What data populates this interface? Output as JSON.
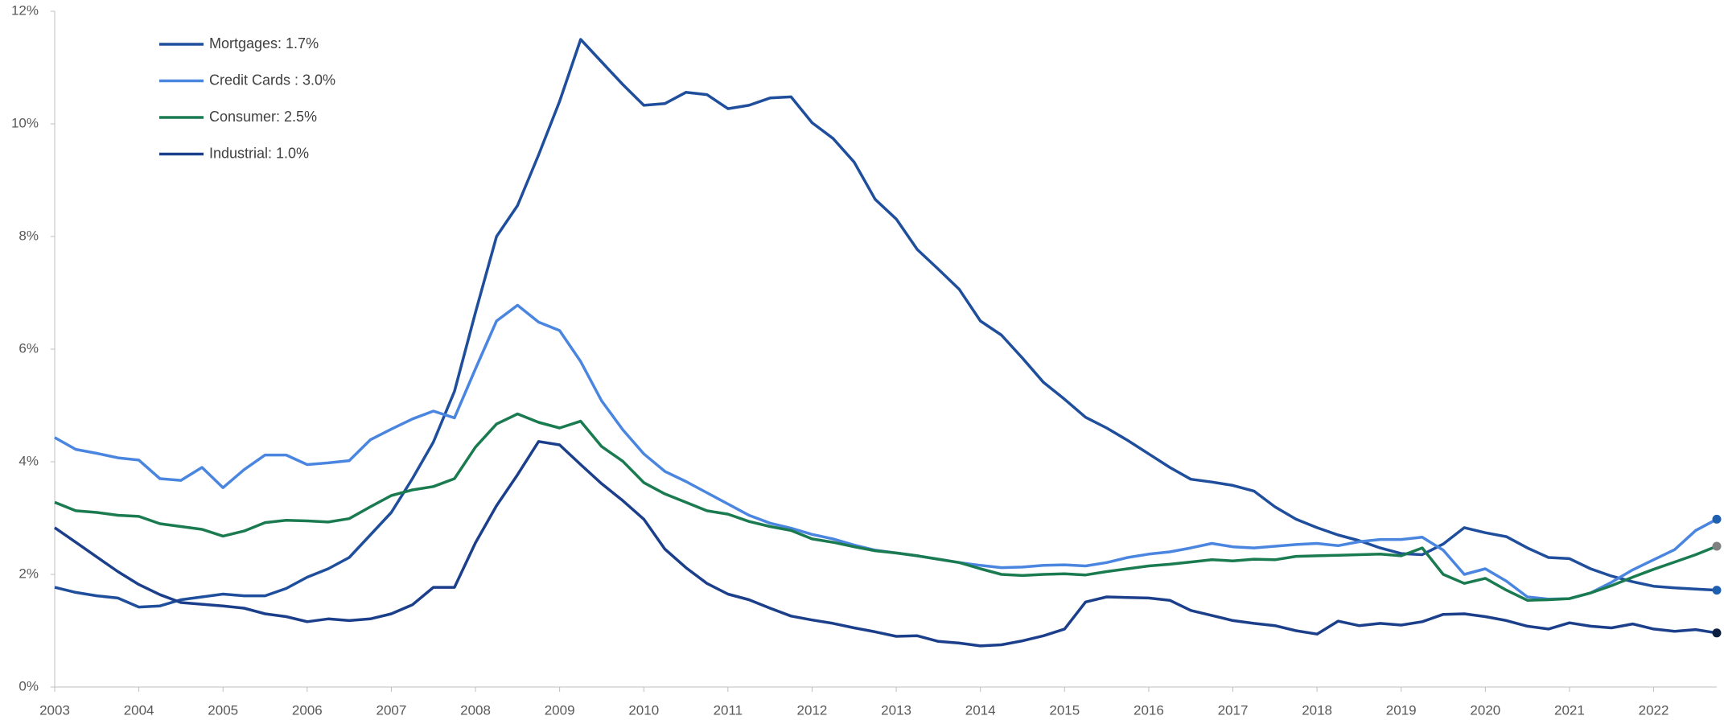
{
  "chart_data": {
    "type": "line",
    "x": [
      2003,
      2003.25,
      2003.5,
      2003.75,
      2004,
      2004.25,
      2004.5,
      2004.75,
      2005,
      2005.25,
      2005.5,
      2005.75,
      2006,
      2006.25,
      2006.5,
      2006.75,
      2007,
      2007.25,
      2007.5,
      2007.75,
      2008,
      2008.25,
      2008.5,
      2008.75,
      2009,
      2009.25,
      2009.5,
      2009.75,
      2010,
      2010.25,
      2010.5,
      2010.75,
      2011,
      2011.25,
      2011.5,
      2011.75,
      2012,
      2012.25,
      2012.5,
      2012.75,
      2013,
      2013.25,
      2013.5,
      2013.75,
      2014,
      2014.25,
      2014.5,
      2014.75,
      2015,
      2015.25,
      2015.5,
      2015.75,
      2016,
      2016.25,
      2016.5,
      2016.75,
      2017,
      2017.25,
      2017.5,
      2017.75,
      2018,
      2018.25,
      2018.5,
      2018.75,
      2019,
      2019.25,
      2019.5,
      2019.75,
      2020,
      2020.25,
      2020.5,
      2020.75,
      2021,
      2021.25,
      2021.5,
      2021.75,
      2022,
      2022.25,
      2022.5,
      2022.75
    ],
    "xlim": [
      2003,
      2022.75
    ],
    "xticks": [
      2003,
      2004,
      2005,
      2006,
      2007,
      2008,
      2009,
      2010,
      2011,
      2012,
      2013,
      2014,
      2015,
      2016,
      2017,
      2018,
      2019,
      2020,
      2021,
      2022
    ],
    "ylim": [
      0,
      12
    ],
    "yticks": [
      {
        "value": 0,
        "label": "0%"
      },
      {
        "value": 2,
        "label": "2%"
      },
      {
        "value": 4,
        "label": "4%"
      },
      {
        "value": 6,
        "label": "6%"
      },
      {
        "value": 8,
        "label": "8%"
      },
      {
        "value": 10,
        "label": "10%"
      },
      {
        "value": 12,
        "label": "12%"
      }
    ],
    "grid": false,
    "legend": "upper left",
    "series": [
      {
        "name": "Mortgages: 1.7%",
        "color": "#1f4e9c",
        "end_marker_color": "#1f5fb0",
        "values": [
          1.77,
          1.68,
          1.62,
          1.58,
          1.42,
          1.44,
          1.55,
          1.6,
          1.65,
          1.62,
          1.62,
          1.75,
          1.95,
          2.1,
          2.3,
          2.7,
          3.1,
          3.7,
          4.35,
          5.25,
          6.65,
          8.0,
          8.55,
          9.45,
          10.4,
          11.5,
          11.1,
          10.7,
          10.33,
          10.36,
          10.56,
          10.52,
          10.27,
          10.33,
          10.46,
          10.48,
          10.02,
          9.74,
          9.32,
          8.66,
          8.31,
          7.77,
          7.42,
          7.06,
          6.5,
          6.25,
          5.84,
          5.41,
          5.11,
          4.79,
          4.6,
          4.38,
          4.14,
          3.9,
          3.69,
          3.64,
          3.58,
          3.48,
          3.2,
          2.98,
          2.83,
          2.7,
          2.6,
          2.47,
          2.37,
          2.35,
          2.54,
          2.83,
          2.74,
          2.67,
          2.47,
          2.3,
          2.28,
          2.1,
          1.97,
          1.87,
          1.79,
          1.76,
          1.74,
          1.72
        ]
      },
      {
        "name": "Credit Cards : 3.0%",
        "color": "#4a86e0",
        "end_marker_color": "#1f5fb0",
        "values": [
          4.43,
          4.22,
          4.15,
          4.07,
          4.03,
          3.7,
          3.67,
          3.9,
          3.54,
          3.86,
          4.12,
          4.12,
          3.95,
          3.98,
          4.02,
          4.39,
          4.58,
          4.76,
          4.9,
          4.78,
          5.65,
          6.5,
          6.78,
          6.48,
          6.33,
          5.78,
          5.08,
          4.57,
          4.14,
          3.83,
          3.65,
          3.45,
          3.25,
          3.05,
          2.91,
          2.82,
          2.71,
          2.63,
          2.52,
          2.43,
          2.38,
          2.33,
          2.27,
          2.21,
          2.16,
          2.12,
          2.13,
          2.16,
          2.17,
          2.15,
          2.21,
          2.3,
          2.36,
          2.4,
          2.47,
          2.55,
          2.49,
          2.47,
          2.5,
          2.53,
          2.55,
          2.51,
          2.58,
          2.62,
          2.62,
          2.66,
          2.43,
          2.0,
          2.1,
          1.88,
          1.6,
          1.56,
          1.57,
          1.67,
          1.86,
          2.08,
          2.26,
          2.44,
          2.78,
          2.98
        ]
      },
      {
        "name": "Consumer: 2.5%",
        "color": "#1a7a50",
        "end_marker_color": "#808080",
        "values": [
          3.28,
          3.13,
          3.1,
          3.05,
          3.03,
          2.9,
          2.85,
          2.8,
          2.68,
          2.77,
          2.92,
          2.96,
          2.95,
          2.93,
          2.99,
          3.2,
          3.4,
          3.5,
          3.56,
          3.7,
          4.26,
          4.67,
          4.85,
          4.7,
          4.6,
          4.72,
          4.27,
          4.01,
          3.63,
          3.43,
          3.28,
          3.13,
          3.07,
          2.94,
          2.85,
          2.78,
          2.63,
          2.57,
          2.49,
          2.42,
          2.38,
          2.33,
          2.27,
          2.21,
          2.1,
          2.0,
          1.98,
          2.0,
          2.01,
          1.99,
          2.05,
          2.1,
          2.15,
          2.18,
          2.22,
          2.26,
          2.24,
          2.27,
          2.26,
          2.32,
          2.33,
          2.34,
          2.35,
          2.36,
          2.33,
          2.47,
          2.0,
          1.84,
          1.93,
          1.72,
          1.54,
          1.55,
          1.57,
          1.67,
          1.8,
          1.95,
          2.09,
          2.22,
          2.35,
          2.5
        ]
      },
      {
        "name": "Industrial: 1.0%",
        "color": "#1b3f8a",
        "end_marker_color": "#0d1f3f",
        "values": [
          2.83,
          2.57,
          2.31,
          2.05,
          1.82,
          1.64,
          1.5,
          1.47,
          1.44,
          1.4,
          1.3,
          1.25,
          1.16,
          1.21,
          1.18,
          1.21,
          1.3,
          1.46,
          1.77,
          1.77,
          2.56,
          3.22,
          3.77,
          4.36,
          4.3,
          3.95,
          3.61,
          3.31,
          2.98,
          2.45,
          2.12,
          1.84,
          1.65,
          1.55,
          1.4,
          1.26,
          1.19,
          1.13,
          1.05,
          0.98,
          0.9,
          0.91,
          0.81,
          0.78,
          0.73,
          0.75,
          0.82,
          0.91,
          1.03,
          1.51,
          1.6,
          1.59,
          1.58,
          1.54,
          1.36,
          1.27,
          1.18,
          1.13,
          1.09,
          1.0,
          0.94,
          1.17,
          1.09,
          1.13,
          1.1,
          1.16,
          1.29,
          1.3,
          1.25,
          1.18,
          1.08,
          1.03,
          1.14,
          1.08,
          1.05,
          1.12,
          1.03,
          0.99,
          1.02,
          0.96
        ]
      }
    ]
  }
}
